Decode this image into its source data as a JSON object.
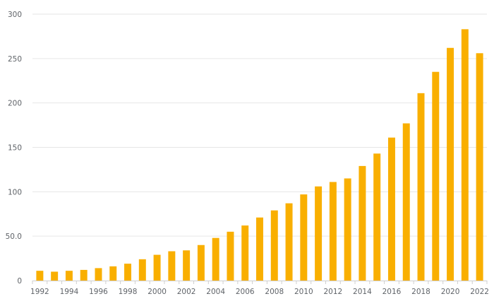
{
  "chart_data": {
    "type": "bar",
    "title": "",
    "xlabel": "",
    "ylabel": "",
    "color": "#F9AF00",
    "grid": true,
    "ylim": [
      0,
      300
    ],
    "y_ticks": [
      "0",
      "50.0",
      "100",
      "150",
      "200",
      "250",
      "300"
    ],
    "y_tick_values": [
      0,
      50,
      100,
      150,
      200,
      250,
      300
    ],
    "categories": [
      "1992",
      "1993",
      "1994",
      "1995",
      "1996",
      "1997",
      "1998",
      "1999",
      "2000",
      "2001",
      "2002",
      "2003",
      "2004",
      "2005",
      "2006",
      "2007",
      "2008",
      "2009",
      "2010",
      "2011",
      "2012",
      "2013",
      "2014",
      "2015",
      "2016",
      "2017",
      "2018",
      "2019",
      "2020",
      "2021",
      "2022"
    ],
    "x_tick_labels": [
      "1992",
      "1994",
      "1996",
      "1998",
      "2000",
      "2002",
      "2004",
      "2006",
      "2008",
      "2010",
      "2012",
      "2014",
      "2016",
      "2018",
      "2020",
      "2022"
    ],
    "values": [
      11,
      10,
      11,
      12,
      14,
      16,
      19,
      24,
      29,
      33,
      34,
      40,
      48,
      55,
      62,
      71,
      79,
      87,
      97,
      106,
      111,
      115,
      129,
      143,
      161,
      177,
      211,
      235,
      262,
      283,
      256
    ]
  }
}
